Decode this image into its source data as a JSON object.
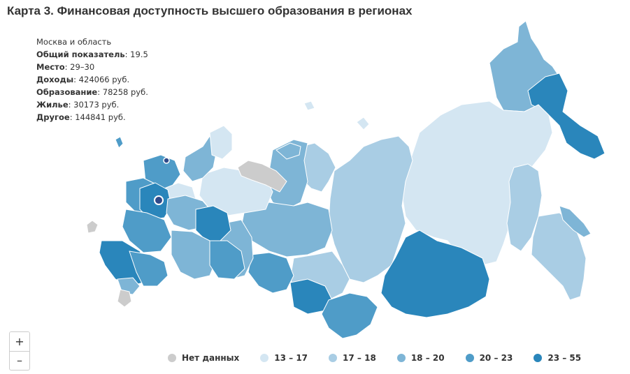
{
  "title": "Карта 3. Финансовая доступность высшего образования в регионах",
  "tooltip": {
    "region": "Москва и область",
    "rows": [
      {
        "label": "Общий показатель",
        "value": " 19.5"
      },
      {
        "label": "Место",
        "value": " 29–30"
      },
      {
        "label": "Доходы",
        "value": " 424066 руб."
      },
      {
        "label": "Образование",
        "value": " 78258 руб."
      },
      {
        "label": "Жилье",
        "value": " 30173 руб."
      },
      {
        "label": "Другое",
        "value": " 144841 руб."
      }
    ]
  },
  "zoom": {
    "in_label": "+",
    "out_label": "–"
  },
  "legend": [
    {
      "label": "Нет данных",
      "color": "#cccccc"
    },
    {
      "label": "13 – 17",
      "color": "#d4e6f2"
    },
    {
      "label": "17 – 18",
      "color": "#a9cde4"
    },
    {
      "label": "18 – 20",
      "color": "#7eb5d6"
    },
    {
      "label": "20 – 23",
      "color": "#4f9cc8"
    },
    {
      "label": "23 – 55",
      "color": "#2a86bb"
    }
  ],
  "colors": {
    "no_data": "#cccccc",
    "c13_17": "#d4e6f2",
    "c17_18": "#a9cde4",
    "c18_20": "#7eb5d6",
    "c20_23": "#4f9cc8",
    "c23_55": "#2a86bb",
    "marker": "#2f4a8a"
  }
}
